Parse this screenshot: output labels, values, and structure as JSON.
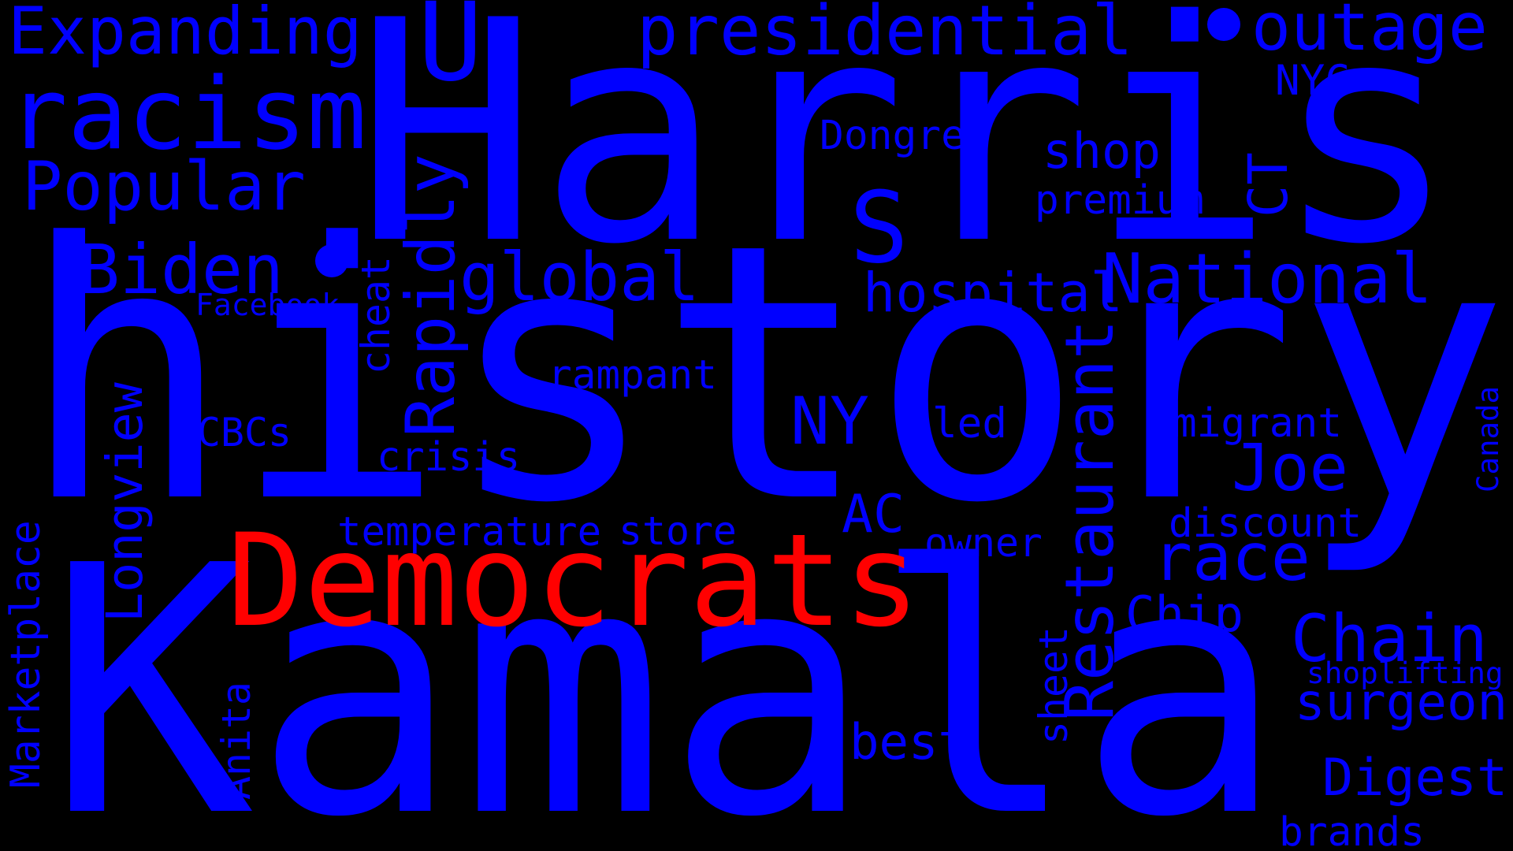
{
  "colors": {
    "background": "#000000",
    "primary": "#0000ff",
    "highlight": "#ff0000"
  },
  "words": {
    "kamala": "Kamala",
    "history": "history",
    "harris": "Harris",
    "democrats": "Democrats",
    "restaurant": "Restaurant",
    "racism": "racism",
    "national": "National",
    "expanding": "Expanding",
    "presidential": "presidential",
    "outage": "outage",
    "u": "U",
    "s": "S",
    "popular": "Popular",
    "biden": "Biden",
    "global": "global",
    "rapidly": "Rapidly",
    "chain": "Chain",
    "race": "race",
    "joe": "Joe",
    "ny": "NY",
    "hospital": "hospital",
    "longview": "Longview",
    "digest": "Digest",
    "surgeon": "surgeon",
    "best": "best",
    "ac": "AC",
    "chip": "Chip",
    "ct": "CT",
    "shop": "shop",
    "dongre": "Dongre",
    "nyc": "NYC",
    "premium": "premium",
    "cbcs": "CBCs",
    "crisis": "crisis",
    "rampant": "rampant",
    "led": "led",
    "migrant": "migrant",
    "temperature": "temperature",
    "store": "store",
    "discount": "discount",
    "owner": "owner",
    "marketplace": "Marketplace",
    "anita": "Anita",
    "sheet": "sheet",
    "brands": "brands",
    "shoplifting": "shoplifting",
    "canada": "Canada",
    "cheat": "cheat",
    "facebook": "Facebook"
  }
}
